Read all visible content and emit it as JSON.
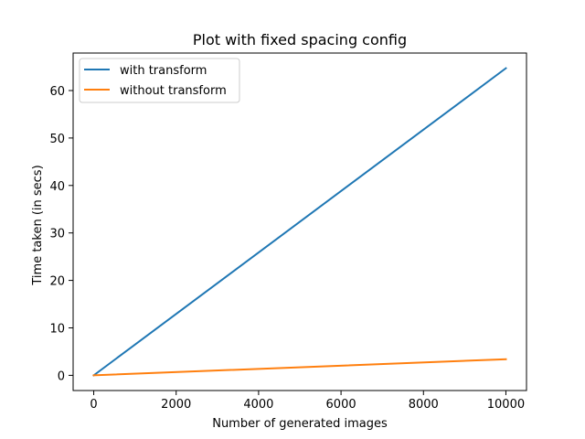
{
  "chart_data": {
    "type": "line",
    "title": "Plot with fixed spacing config",
    "xlabel": "Number of generated images",
    "ylabel": "Time taken (in secs)",
    "xlim": [
      -500,
      10500
    ],
    "ylim": [
      -3.2,
      67.9
    ],
    "x_ticks": [
      0,
      2000,
      4000,
      6000,
      8000,
      10000
    ],
    "x_tick_labels": [
      "0",
      "2000",
      "4000",
      "6000",
      "8000",
      "10000"
    ],
    "y_ticks": [
      0,
      10,
      20,
      30,
      40,
      50,
      60
    ],
    "y_tick_labels": [
      "0",
      "10",
      "20",
      "30",
      "40",
      "50",
      "60"
    ],
    "grid": false,
    "legend_position": "top-left",
    "series": [
      {
        "name": "with transform",
        "color": "#1f77b4",
        "x": [
          0,
          10000
        ],
        "y": [
          0,
          64.7
        ]
      },
      {
        "name": "without transform",
        "color": "#ff7f0e",
        "x": [
          0,
          10000
        ],
        "y": [
          0,
          3.4
        ]
      }
    ]
  }
}
